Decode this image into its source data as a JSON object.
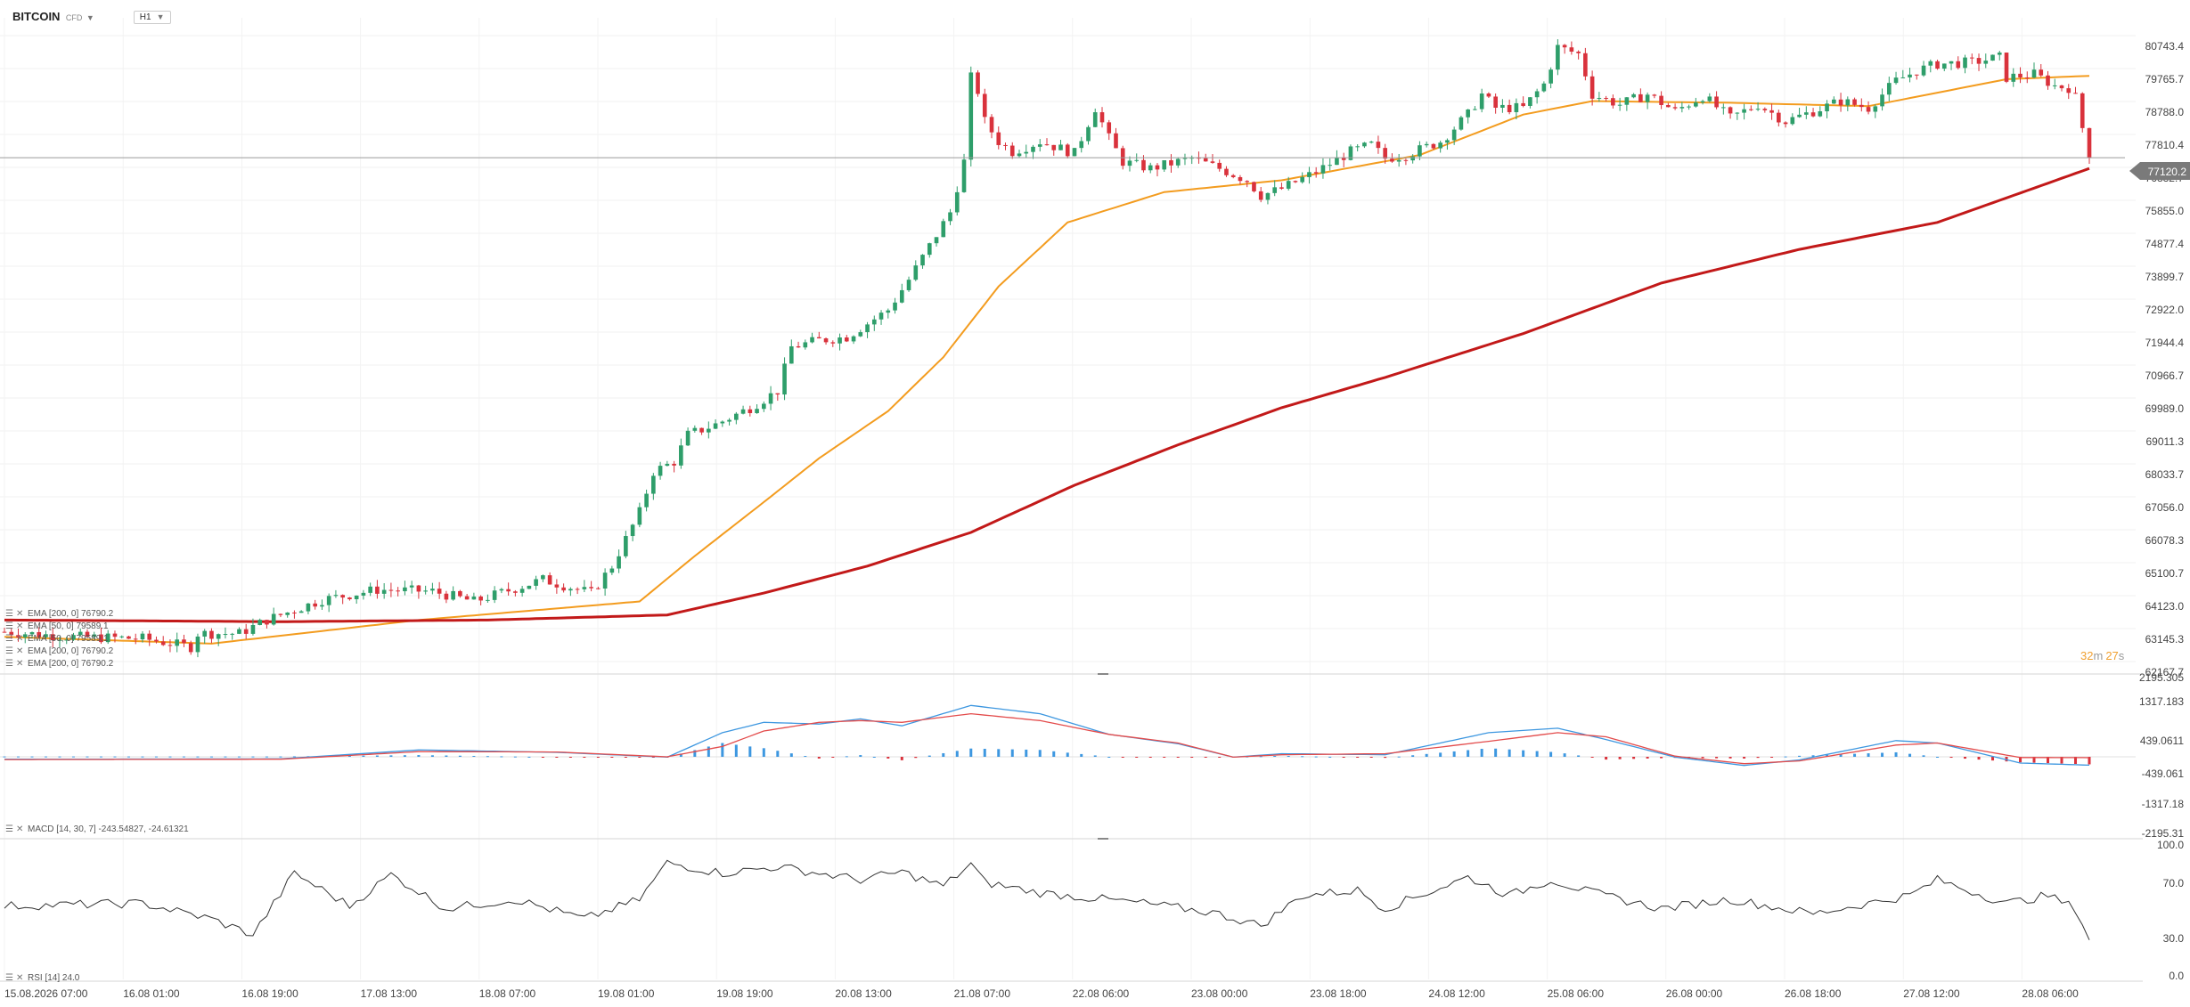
{
  "header": {
    "symbol": "BITCOIN",
    "symbol_type": "CFD",
    "timeframe": "H1"
  },
  "price_axis": {
    "labels": [
      "80743.4",
      "79765.7",
      "78788.0",
      "77810.4",
      "76832.7",
      "75855.0",
      "74877.4",
      "73899.7",
      "72922.0",
      "71944.4",
      "70966.7",
      "69989.0",
      "69011.3",
      "68033.7",
      "67056.0",
      "66078.3",
      "65100.7",
      "64123.0",
      "63145.3",
      "62167.7"
    ],
    "current_price": "77120.2",
    "countdown_min": "32",
    "countdown_sec": "27",
    "countdown_m": "m",
    "countdown_s": "s"
  },
  "macd_axis": {
    "labels": [
      "2195.305",
      "1317.183",
      "439.0611",
      "-439.061",
      "-1317.18",
      "-2195.31"
    ]
  },
  "rsi_axis": {
    "labels": [
      "100.0",
      "70.0",
      "30.0",
      "0.0"
    ]
  },
  "time_axis": {
    "labels": [
      "15.08.2026 07:00",
      "16.08 01:00",
      "16.08 19:00",
      "17.08 13:00",
      "18.08 07:00",
      "19.08 01:00",
      "19.08 19:00",
      "20.08 13:00",
      "21.08 07:00",
      "22.08 06:00",
      "23.08 00:00",
      "23.08 18:00",
      "24.08 12:00",
      "25.08 06:00",
      "26.08 00:00",
      "26.08 18:00",
      "27.08 12:00",
      "28.08 06:00"
    ]
  },
  "legend": {
    "ema200_label": "EMA [200, 0] 76790.2",
    "ema50_label": "EMA [50, 0] 79589.1",
    "macd_label": "MACD [14, 30, 7] -243.54827, -24.61321",
    "rsi_label": "RSI [14] 24.0"
  },
  "colors": {
    "up": "#2e9e6a",
    "down": "#d9323c",
    "ema50": "#f39c1f",
    "ema200": "#c21919",
    "macd": "#3d97e0",
    "signal": "#e34b4b",
    "rsi": "#333333",
    "price_tag": "#7a7a7a",
    "countdown": "#f0a030"
  },
  "chart_data": [
    {
      "type": "candlestick",
      "title": "BITCOIN CFD H1",
      "x_range": [
        "15.08.2026 07:00",
        "28.08 13:00"
      ],
      "ylim": [
        62167.7,
        81721.0
      ],
      "price_path": [
        [
          0,
          63050
        ],
        [
          10,
          62900
        ],
        [
          20,
          62850
        ],
        [
          27,
          62600
        ],
        [
          28,
          63000
        ],
        [
          34,
          63000
        ],
        [
          38,
          63400
        ],
        [
          46,
          64000
        ],
        [
          54,
          64300
        ],
        [
          62,
          64250
        ],
        [
          68,
          63950
        ],
        [
          78,
          64600
        ],
        [
          85,
          64200
        ],
        [
          88,
          65000
        ],
        [
          92,
          66600
        ],
        [
          94,
          67800
        ],
        [
          97,
          68100
        ],
        [
          99,
          68900
        ],
        [
          103,
          69200
        ],
        [
          108,
          69700
        ],
        [
          112,
          70200
        ],
        [
          114,
          71500
        ],
        [
          118,
          71700
        ],
        [
          122,
          71800
        ],
        [
          128,
          72600
        ],
        [
          131,
          73500
        ],
        [
          134,
          74500
        ],
        [
          137,
          75500
        ],
        [
          139,
          77000
        ],
        [
          140,
          79500
        ],
        [
          141,
          79100
        ],
        [
          142,
          78200
        ],
        [
          144,
          77600
        ],
        [
          146,
          77300
        ],
        [
          150,
          77600
        ],
        [
          155,
          77250
        ],
        [
          158,
          78600
        ],
        [
          160,
          77700
        ],
        [
          162,
          77000
        ],
        [
          166,
          76800
        ],
        [
          172,
          77100
        ],
        [
          176,
          76800
        ],
        [
          180,
          76450
        ],
        [
          182,
          76000
        ],
        [
          185,
          76200
        ],
        [
          190,
          76700
        ],
        [
          195,
          77300
        ],
        [
          198,
          77500
        ],
        [
          200,
          77100
        ],
        [
          203,
          77200
        ],
        [
          208,
          77600
        ],
        [
          212,
          78400
        ],
        [
          214,
          79000
        ],
        [
          216,
          78600
        ],
        [
          220,
          78600
        ],
        [
          223,
          79300
        ],
        [
          225,
          80400
        ],
        [
          228,
          80200
        ],
        [
          230,
          79000
        ],
        [
          234,
          78700
        ],
        [
          238,
          79000
        ],
        [
          242,
          78500
        ],
        [
          246,
          78950
        ],
        [
          250,
          78300
        ],
        [
          254,
          78700
        ],
        [
          258,
          78200
        ],
        [
          262,
          78500
        ],
        [
          266,
          78800
        ],
        [
          270,
          78600
        ],
        [
          274,
          79400
        ],
        [
          277,
          79700
        ],
        [
          280,
          79900
        ],
        [
          285,
          79950
        ],
        [
          289,
          80100
        ],
        [
          290,
          79500
        ],
        [
          294,
          79600
        ],
        [
          297,
          79250
        ],
        [
          299,
          79200
        ],
        [
          300,
          78900
        ],
        [
          302,
          77120
        ]
      ]
    },
    {
      "type": "line",
      "title": "EMA",
      "series": [
        {
          "name": "EMA [50, 0]",
          "last_value": 79589.1,
          "points": [
            [
              0,
              62900
            ],
            [
              30,
              62700
            ],
            [
              60,
              63400
            ],
            [
              92,
              63950
            ],
            [
              100,
              65300
            ],
            [
              110,
              66900
            ],
            [
              118,
              68200
            ],
            [
              128,
              69600
            ],
            [
              136,
              71200
            ],
            [
              144,
              73300
            ],
            [
              154,
              75200
            ],
            [
              168,
              76100
            ],
            [
              185,
              76450
            ],
            [
              205,
              77200
            ],
            [
              220,
              78400
            ],
            [
              230,
              78800
            ],
            [
              250,
              78750
            ],
            [
              270,
              78650
            ],
            [
              290,
              79450
            ],
            [
              302,
              79550
            ]
          ]
        },
        {
          "name": "EMA [200, 0]",
          "last_value": 76790.2,
          "points": [
            [
              0,
              63400
            ],
            [
              40,
              63350
            ],
            [
              70,
              63400
            ],
            [
              96,
              63550
            ],
            [
              110,
              64200
            ],
            [
              125,
              65000
            ],
            [
              140,
              66000
            ],
            [
              155,
              67400
            ],
            [
              170,
              68600
            ],
            [
              185,
              69700
            ],
            [
              200,
              70600
            ],
            [
              220,
              71900
            ],
            [
              240,
              73400
            ],
            [
              260,
              74400
            ],
            [
              280,
              75200
            ],
            [
              302,
              76800
            ]
          ]
        }
      ]
    },
    {
      "type": "bar",
      "title": "MACD [14, 30, 7]",
      "ylim": [
        -2195.31,
        2195.305
      ],
      "macd_line": [
        [
          0,
          -70
        ],
        [
          40,
          -60
        ],
        [
          60,
          200
        ],
        [
          80,
          130
        ],
        [
          96,
          -10
        ],
        [
          104,
          700
        ],
        [
          110,
          1000
        ],
        [
          118,
          950
        ],
        [
          124,
          1100
        ],
        [
          130,
          900
        ],
        [
          140,
          1490
        ],
        [
          150,
          1250
        ],
        [
          160,
          650
        ],
        [
          170,
          380
        ],
        [
          178,
          -10
        ],
        [
          185,
          90
        ],
        [
          200,
          60
        ],
        [
          215,
          700
        ],
        [
          225,
          830
        ],
        [
          232,
          500
        ],
        [
          242,
          -10
        ],
        [
          252,
          -250
        ],
        [
          260,
          -90
        ],
        [
          274,
          470
        ],
        [
          280,
          400
        ],
        [
          292,
          -180
        ],
        [
          302,
          -243.5
        ]
      ],
      "signal_line": [
        [
          0,
          -80
        ],
        [
          40,
          -70
        ],
        [
          60,
          150
        ],
        [
          80,
          140
        ],
        [
          96,
          0
        ],
        [
          104,
          300
        ],
        [
          110,
          750
        ],
        [
          118,
          1000
        ],
        [
          124,
          1050
        ],
        [
          130,
          1000
        ],
        [
          140,
          1250
        ],
        [
          150,
          1050
        ],
        [
          160,
          650
        ],
        [
          170,
          400
        ],
        [
          178,
          -10
        ],
        [
          185,
          60
        ],
        [
          200,
          90
        ],
        [
          215,
          450
        ],
        [
          225,
          700
        ],
        [
          232,
          580
        ],
        [
          242,
          20
        ],
        [
          252,
          -200
        ],
        [
          260,
          -120
        ],
        [
          274,
          340
        ],
        [
          280,
          400
        ],
        [
          292,
          -20
        ],
        [
          302,
          -24.6
        ]
      ]
    },
    {
      "type": "line",
      "title": "RSI [14]",
      "ylim": [
        0,
        100
      ],
      "points": [
        [
          0,
          50
        ],
        [
          20,
          52
        ],
        [
          30,
          40
        ],
        [
          36,
          28
        ],
        [
          42,
          75
        ],
        [
          50,
          50
        ],
        [
          56,
          74
        ],
        [
          64,
          48
        ],
        [
          74,
          55
        ],
        [
          84,
          40
        ],
        [
          92,
          55
        ],
        [
          96,
          83
        ],
        [
          104,
          75
        ],
        [
          112,
          80
        ],
        [
          124,
          70
        ],
        [
          130,
          76
        ],
        [
          136,
          65
        ],
        [
          140,
          82
        ],
        [
          142,
          68
        ],
        [
          150,
          60
        ],
        [
          165,
          52
        ],
        [
          175,
          45
        ],
        [
          182,
          35
        ],
        [
          188,
          58
        ],
        [
          196,
          62
        ],
        [
          200,
          48
        ],
        [
          212,
          72
        ],
        [
          218,
          58
        ],
        [
          224,
          70
        ],
        [
          230,
          60
        ],
        [
          240,
          48
        ],
        [
          250,
          55
        ],
        [
          262,
          44
        ],
        [
          276,
          58
        ],
        [
          280,
          70
        ],
        [
          290,
          52
        ],
        [
          296,
          58
        ],
        [
          300,
          48
        ],
        [
          302,
          24
        ]
      ]
    }
  ]
}
